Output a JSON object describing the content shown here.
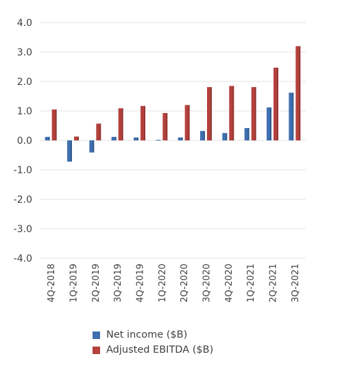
{
  "chart_data": {
    "type": "bar",
    "categories": [
      "4Q-2018",
      "1Q-2019",
      "2Q-2019",
      "3Q-2019",
      "4Q-2019",
      "1Q-2020",
      "2Q-2020",
      "3Q-2020",
      "4Q-2020",
      "1Q-2021",
      "2Q-2021",
      "3Q-2021"
    ],
    "series": [
      {
        "name": "Net income ($B)",
        "color": "#3f6fb0",
        "values": [
          0.12,
          -0.72,
          -0.41,
          0.12,
          0.1,
          0.02,
          0.1,
          0.32,
          0.25,
          0.42,
          1.12,
          1.62
        ]
      },
      {
        "name": "Adjusted EBITDA ($B)",
        "color": "#b4413d",
        "values": [
          1.05,
          0.13,
          0.57,
          1.09,
          1.17,
          0.93,
          1.2,
          1.81,
          1.85,
          1.81,
          2.47,
          3.2
        ]
      }
    ],
    "yticks": [
      "4.0",
      "3.0",
      "2.0",
      "1.0",
      "0.0",
      "-1.0",
      "-2.0",
      "-3.0",
      "-4.0"
    ],
    "ylim": [
      -4.0,
      4.0
    ],
    "grid": "horizontal",
    "legend_position": "bottom"
  }
}
